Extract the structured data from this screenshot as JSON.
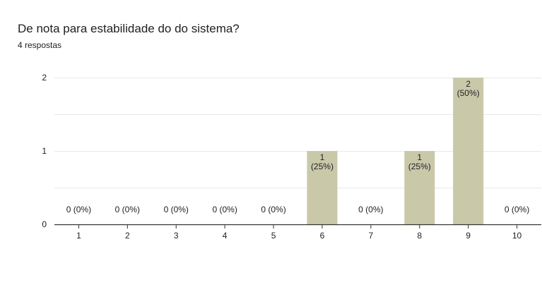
{
  "question": {
    "title": "De nota para estabilidade do do sistema?",
    "response_count": "4 respostas"
  },
  "chart_data": {
    "type": "bar",
    "categories": [
      "1",
      "2",
      "3",
      "4",
      "5",
      "6",
      "7",
      "8",
      "9",
      "10"
    ],
    "values": [
      0,
      0,
      0,
      0,
      0,
      1,
      0,
      1,
      2,
      0
    ],
    "data_labels": [
      "0 (0%)",
      "0 (0%)",
      "0 (0%)",
      "0 (0%)",
      "0 (0%)",
      "1\n(25%)",
      "0 (0%)",
      "1\n(25%)",
      "2\n(50%)",
      "0 (0%)"
    ],
    "title": "",
    "xlabel": "",
    "ylabel": "",
    "ylim": [
      0,
      2
    ],
    "yticks": [
      0,
      1,
      2
    ],
    "grid": true,
    "legend": "none",
    "colors": {
      "bar": "#c9c9aa",
      "grid": "#e8e8e8",
      "axis": "#333333"
    }
  }
}
